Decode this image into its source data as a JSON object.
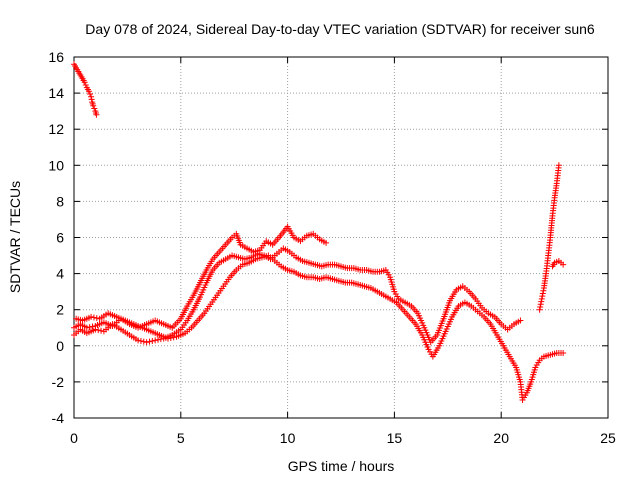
{
  "chart_data": {
    "type": "scatter",
    "title": "Day 078 of 2024, Sidereal Day-to-day VTEC variation (SDTVAR) for receiver sun6",
    "xlabel": "GPS time / hours",
    "ylabel": "SDTVAR / TECUs",
    "xlim": [
      0,
      25
    ],
    "ylim": [
      -4,
      16
    ],
    "xticks": [
      0,
      5,
      10,
      15,
      20,
      25
    ],
    "yticks": [
      -4,
      -2,
      0,
      2,
      4,
      6,
      8,
      10,
      12,
      14,
      16
    ],
    "grid": true,
    "legend": "none",
    "marker": "+",
    "series": [
      {
        "name": "early-high",
        "color": "#ff0000",
        "points": [
          [
            0.0,
            15.6
          ],
          [
            0.1,
            15.4
          ],
          [
            0.2,
            15.2
          ],
          [
            0.3,
            15.0
          ],
          [
            0.4,
            14.8
          ],
          [
            0.5,
            14.6
          ],
          [
            0.6,
            14.3
          ],
          [
            0.7,
            14.1
          ],
          [
            0.8,
            13.8
          ],
          [
            0.85,
            13.5
          ],
          [
            0.9,
            13.3
          ],
          [
            1.0,
            13.0
          ],
          [
            1.05,
            12.8
          ]
        ]
      },
      {
        "name": "track-a",
        "color": "#ff0000",
        "points": [
          [
            0.0,
            1.0
          ],
          [
            0.3,
            1.2
          ],
          [
            0.6,
            1.0
          ],
          [
            1.0,
            1.1
          ],
          [
            1.4,
            1.3
          ],
          [
            1.8,
            1.1
          ],
          [
            2.2,
            1.5
          ],
          [
            2.6,
            1.2
          ],
          [
            3.0,
            1.0
          ],
          [
            3.4,
            1.2
          ],
          [
            3.8,
            1.4
          ],
          [
            4.2,
            1.2
          ],
          [
            4.6,
            1.0
          ],
          [
            5.0,
            1.5
          ],
          [
            5.3,
            2.2
          ],
          [
            5.6,
            2.8
          ],
          [
            5.9,
            3.5
          ],
          [
            6.2,
            4.2
          ],
          [
            6.5,
            4.8
          ],
          [
            6.8,
            5.2
          ],
          [
            7.1,
            5.6
          ],
          [
            7.4,
            6.0
          ],
          [
            7.6,
            6.2
          ],
          [
            7.8,
            5.6
          ],
          [
            8.1,
            5.4
          ],
          [
            8.4,
            5.2
          ],
          [
            8.7,
            5.3
          ],
          [
            9.0,
            5.8
          ],
          [
            9.3,
            5.6
          ],
          [
            9.6,
            6.0
          ],
          [
            9.8,
            6.3
          ],
          [
            10.0,
            6.6
          ],
          [
            10.3,
            6.0
          ],
          [
            10.6,
            5.8
          ],
          [
            10.9,
            6.1
          ],
          [
            11.2,
            6.2
          ],
          [
            11.5,
            5.9
          ],
          [
            11.8,
            5.7
          ]
        ]
      },
      {
        "name": "track-b",
        "color": "#ff0000",
        "points": [
          [
            0.0,
            0.6
          ],
          [
            0.3,
            0.9
          ],
          [
            0.6,
            0.7
          ],
          [
            1.0,
            0.9
          ],
          [
            1.4,
            0.8
          ],
          [
            1.8,
            1.2
          ],
          [
            2.2,
            0.9
          ],
          [
            2.6,
            0.6
          ],
          [
            3.0,
            0.3
          ],
          [
            3.4,
            0.2
          ],
          [
            3.8,
            0.3
          ],
          [
            4.2,
            0.4
          ],
          [
            4.6,
            0.6
          ],
          [
            5.0,
            0.9
          ],
          [
            5.3,
            1.4
          ],
          [
            5.6,
            2.0
          ],
          [
            5.9,
            2.7
          ],
          [
            6.2,
            3.5
          ],
          [
            6.5,
            4.2
          ],
          [
            6.8,
            4.6
          ],
          [
            7.1,
            4.8
          ],
          [
            7.4,
            5.0
          ],
          [
            7.7,
            4.9
          ],
          [
            8.0,
            4.8
          ],
          [
            8.3,
            4.9
          ],
          [
            8.6,
            5.1
          ],
          [
            8.9,
            5.0
          ],
          [
            9.2,
            4.8
          ],
          [
            9.5,
            5.1
          ],
          [
            9.8,
            5.4
          ],
          [
            10.1,
            5.2
          ],
          [
            10.4,
            4.9
          ],
          [
            10.7,
            4.7
          ],
          [
            11.0,
            4.6
          ],
          [
            11.3,
            4.5
          ],
          [
            11.6,
            4.4
          ],
          [
            11.9,
            4.5
          ],
          [
            12.2,
            4.5
          ],
          [
            12.5,
            4.4
          ],
          [
            12.8,
            4.3
          ],
          [
            13.1,
            4.3
          ],
          [
            13.4,
            4.2
          ],
          [
            13.7,
            4.2
          ],
          [
            14.0,
            4.1
          ],
          [
            14.3,
            4.1
          ],
          [
            14.6,
            4.2
          ],
          [
            14.8,
            3.8
          ],
          [
            15.0,
            3.0
          ],
          [
            15.2,
            2.6
          ],
          [
            15.5,
            2.4
          ],
          [
            15.8,
            2.2
          ],
          [
            16.1,
            1.8
          ],
          [
            16.4,
            1.0
          ],
          [
            16.7,
            0.2
          ],
          [
            17.0,
            0.6
          ],
          [
            17.3,
            1.5
          ],
          [
            17.6,
            2.5
          ],
          [
            17.9,
            3.1
          ],
          [
            18.2,
            3.3
          ],
          [
            18.5,
            3.0
          ],
          [
            18.8,
            2.6
          ],
          [
            19.1,
            2.1
          ],
          [
            19.4,
            1.8
          ],
          [
            19.7,
            1.6
          ],
          [
            20.0,
            1.2
          ],
          [
            20.3,
            0.9
          ],
          [
            20.6,
            1.2
          ],
          [
            20.9,
            1.4
          ]
        ]
      },
      {
        "name": "track-c",
        "color": "#ff0000",
        "points": [
          [
            0.1,
            1.5
          ],
          [
            0.4,
            1.4
          ],
          [
            0.8,
            1.6
          ],
          [
            1.2,
            1.5
          ],
          [
            1.6,
            1.8
          ],
          [
            2.0,
            1.6
          ],
          [
            2.4,
            1.4
          ],
          [
            2.8,
            1.2
          ],
          [
            3.2,
            1.0
          ],
          [
            3.6,
            0.8
          ],
          [
            4.0,
            0.6
          ],
          [
            4.4,
            0.4
          ],
          [
            4.8,
            0.5
          ],
          [
            5.2,
            0.7
          ],
          [
            5.5,
            1.0
          ],
          [
            5.8,
            1.4
          ],
          [
            6.1,
            1.8
          ],
          [
            6.4,
            2.3
          ],
          [
            6.7,
            2.8
          ],
          [
            7.0,
            3.3
          ],
          [
            7.3,
            3.8
          ],
          [
            7.6,
            4.2
          ],
          [
            7.9,
            4.5
          ],
          [
            8.2,
            4.6
          ],
          [
            8.5,
            4.8
          ],
          [
            8.8,
            4.9
          ],
          [
            9.1,
            5.0
          ],
          [
            9.4,
            4.7
          ],
          [
            9.7,
            4.4
          ],
          [
            10.0,
            4.2
          ],
          [
            10.3,
            4.1
          ],
          [
            10.6,
            3.9
          ],
          [
            10.9,
            3.8
          ],
          [
            11.2,
            3.8
          ],
          [
            11.5,
            3.7
          ],
          [
            11.8,
            3.8
          ],
          [
            12.1,
            3.7
          ],
          [
            12.4,
            3.6
          ],
          [
            12.7,
            3.5
          ],
          [
            13.0,
            3.5
          ],
          [
            13.3,
            3.4
          ],
          [
            13.6,
            3.3
          ],
          [
            13.9,
            3.2
          ],
          [
            14.2,
            3.0
          ],
          [
            14.5,
            2.8
          ],
          [
            14.8,
            2.6
          ],
          [
            15.1,
            2.4
          ],
          [
            15.4,
            2.0
          ],
          [
            15.7,
            1.6
          ],
          [
            16.0,
            1.2
          ],
          [
            16.3,
            0.6
          ],
          [
            16.6,
            -0.2
          ],
          [
            16.8,
            -0.6
          ],
          [
            17.1,
            0.0
          ],
          [
            17.4,
            0.8
          ],
          [
            17.7,
            1.6
          ],
          [
            18.0,
            2.2
          ],
          [
            18.3,
            2.4
          ],
          [
            18.6,
            2.2
          ],
          [
            18.9,
            1.9
          ],
          [
            19.2,
            1.6
          ],
          [
            19.5,
            1.2
          ],
          [
            19.8,
            0.6
          ],
          [
            20.1,
            0.0
          ],
          [
            20.4,
            -0.6
          ],
          [
            20.7,
            -1.2
          ],
          [
            20.9,
            -2.0
          ],
          [
            21.0,
            -3.0
          ],
          [
            21.2,
            -2.6
          ],
          [
            21.4,
            -2.0
          ],
          [
            21.6,
            -1.2
          ],
          [
            21.8,
            -0.8
          ],
          [
            22.0,
            -0.6
          ],
          [
            22.3,
            -0.5
          ],
          [
            22.6,
            -0.4
          ],
          [
            22.9,
            -0.4
          ]
        ]
      },
      {
        "name": "late-spike",
        "color": "#ff0000",
        "points": [
          [
            21.8,
            2.0
          ],
          [
            21.9,
            2.6
          ],
          [
            22.0,
            3.2
          ],
          [
            22.1,
            4.0
          ],
          [
            22.2,
            5.0
          ],
          [
            22.3,
            6.0
          ],
          [
            22.4,
            7.2
          ],
          [
            22.5,
            8.2
          ],
          [
            22.6,
            9.0
          ],
          [
            22.7,
            10.0
          ],
          [
            22.4,
            4.4
          ],
          [
            22.5,
            4.6
          ],
          [
            22.7,
            4.7
          ],
          [
            22.9,
            4.5
          ]
        ]
      }
    ]
  }
}
